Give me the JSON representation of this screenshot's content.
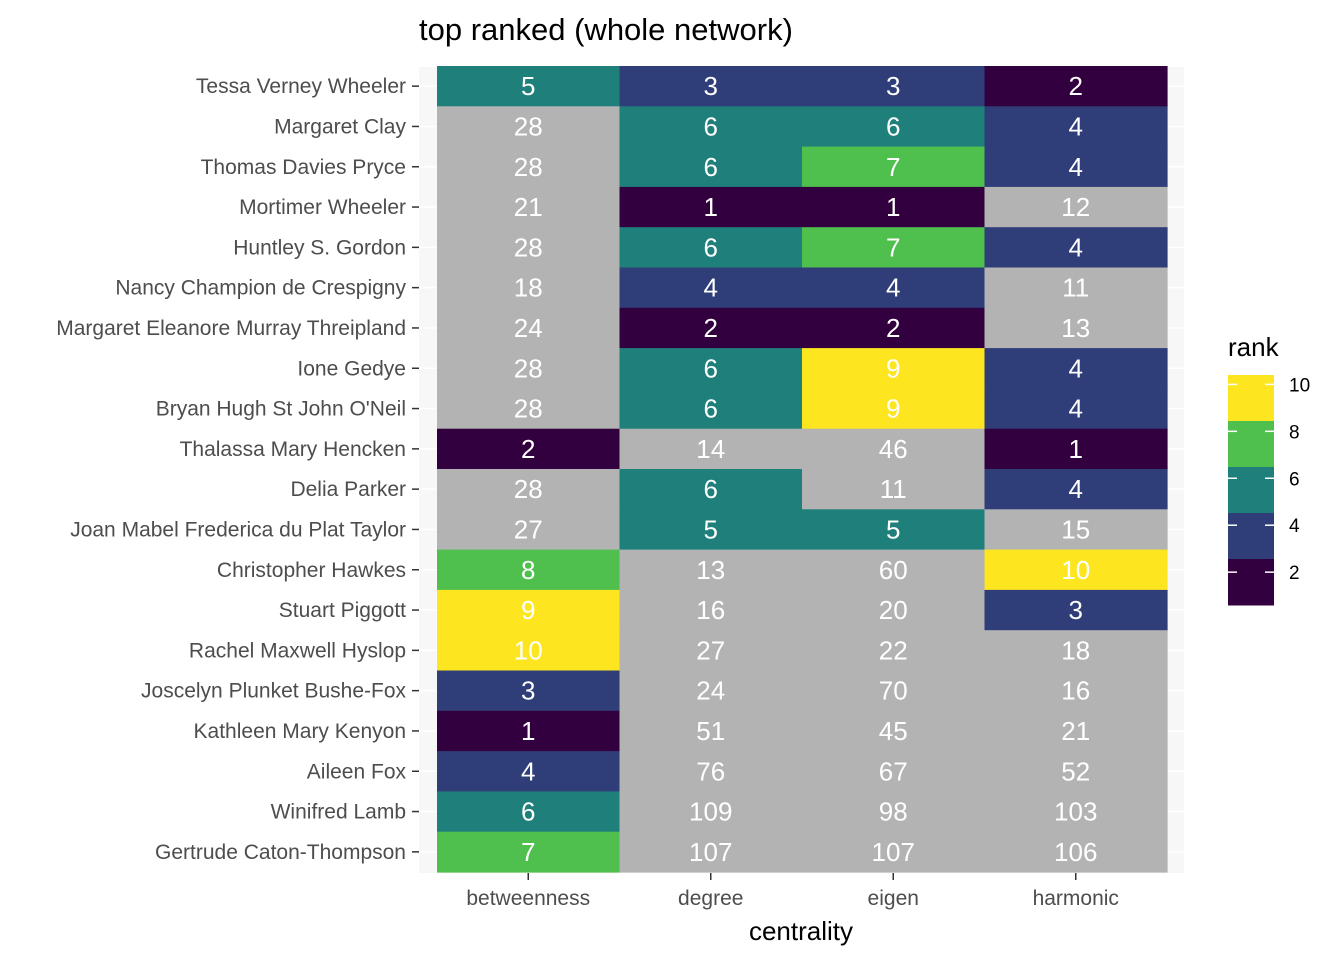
{
  "chart_data": {
    "type": "heatmap",
    "title": "top ranked (whole network)",
    "xlabel": "centrality",
    "ylabel": "",
    "x_categories": [
      "betweenness",
      "degree",
      "eigen",
      "harmonic"
    ],
    "y_categories": [
      "Tessa Verney Wheeler",
      "Margaret Clay",
      "Thomas Davies Pryce",
      "Mortimer Wheeler",
      "Huntley S. Gordon",
      "Nancy Champion de Crespigny",
      "Margaret Eleanore Murray Threipland",
      "Ione Gedye",
      "Bryan Hugh St John O'Neil",
      "Thalassa Mary Hencken",
      "Delia Parker",
      "Joan Mabel Frederica du Plat Taylor",
      "Christopher Hawkes",
      "Stuart Piggott",
      "Rachel Maxwell Hyslop",
      "Joscelyn Plunket Bushe-Fox",
      "Kathleen Mary Kenyon",
      "Aileen Fox",
      "Winifred Lamb",
      "Gertrude Caton-Thompson"
    ],
    "values": [
      [
        5,
        3,
        3,
        2
      ],
      [
        28,
        6,
        6,
        4
      ],
      [
        28,
        6,
        7,
        4
      ],
      [
        21,
        1,
        1,
        12
      ],
      [
        28,
        6,
        7,
        4
      ],
      [
        18,
        4,
        4,
        11
      ],
      [
        24,
        2,
        2,
        13
      ],
      [
        28,
        6,
        9,
        4
      ],
      [
        28,
        6,
        9,
        4
      ],
      [
        2,
        14,
        46,
        1
      ],
      [
        28,
        6,
        11,
        4
      ],
      [
        27,
        5,
        5,
        15
      ],
      [
        8,
        13,
        60,
        10
      ],
      [
        9,
        16,
        20,
        3
      ],
      [
        10,
        27,
        22,
        18
      ],
      [
        3,
        24,
        70,
        16
      ],
      [
        1,
        51,
        45,
        21
      ],
      [
        4,
        76,
        67,
        52
      ],
      [
        6,
        109,
        98,
        103
      ],
      [
        7,
        107,
        107,
        106
      ]
    ],
    "color_scale": {
      "name": "viridis",
      "fill_range": [
        1,
        10
      ],
      "na_color": "#b3b3b3",
      "bins": [
        {
          "max": 2.2,
          "color": "#33003f"
        },
        {
          "max": 4.2,
          "color": "#2f3d78"
        },
        {
          "max": 6.2,
          "color": "#1f7f7b"
        },
        {
          "max": 8.2,
          "color": "#4fc04e"
        },
        {
          "max": 10,
          "color": "#fde61f"
        }
      ]
    },
    "legend": {
      "title": "rank",
      "ticks": [
        "10",
        "8",
        "6",
        "4",
        "2"
      ],
      "placement": "right"
    },
    "panel_background": "#f7f7f7",
    "grid": true
  }
}
